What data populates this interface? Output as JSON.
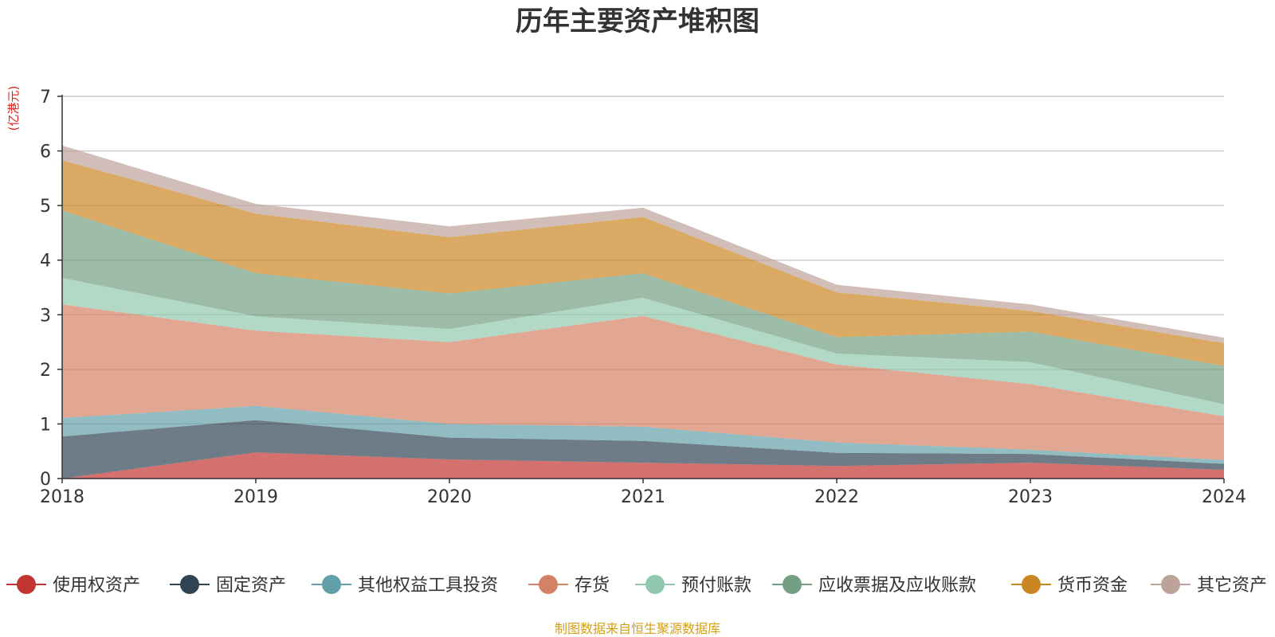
{
  "chart_data": {
    "type": "area",
    "stacked": true,
    "title": "历年主要资产堆积图",
    "unit_label": "(亿港元)",
    "x": [
      "2018",
      "2019",
      "2020",
      "2021",
      "2022",
      "2023",
      "2024"
    ],
    "ylim": [
      0,
      7
    ],
    "yticks": [
      "0",
      "1",
      "2",
      "3",
      "4",
      "5",
      "6",
      "7"
    ],
    "grid": true,
    "legend_position": "bottom",
    "series": [
      {
        "name": "使用权资产",
        "color": "#c23531",
        "values": [
          0.0,
          0.48,
          0.35,
          0.29,
          0.23,
          0.29,
          0.16
        ]
      },
      {
        "name": "固定资产",
        "color": "#2f4554",
        "values": [
          0.77,
          0.59,
          0.4,
          0.4,
          0.24,
          0.16,
          0.11
        ]
      },
      {
        "name": "其他权益工具投资",
        "color": "#61a0a8",
        "values": [
          0.34,
          0.26,
          0.25,
          0.26,
          0.19,
          0.08,
          0.07
        ]
      },
      {
        "name": "存货",
        "color": "#d48265",
        "values": [
          2.08,
          1.38,
          1.5,
          2.03,
          1.43,
          1.2,
          0.8
        ]
      },
      {
        "name": "预付账款",
        "color": "#91c7ae",
        "values": [
          0.48,
          0.26,
          0.24,
          0.33,
          0.2,
          0.4,
          0.22
        ]
      },
      {
        "name": "应收票据及应收账款",
        "color": "#749f83",
        "values": [
          1.24,
          0.79,
          0.65,
          0.45,
          0.3,
          0.56,
          0.7
        ]
      },
      {
        "name": "货币资金",
        "color": "#ca8622",
        "values": [
          0.92,
          1.09,
          1.03,
          1.03,
          0.82,
          0.38,
          0.42
        ]
      },
      {
        "name": "其它资产",
        "color": "#bda29a",
        "values": [
          0.27,
          0.18,
          0.2,
          0.17,
          0.14,
          0.12,
          0.1
        ]
      }
    ]
  },
  "footer": {
    "source": "制图数据来自恒生聚源数据库"
  }
}
